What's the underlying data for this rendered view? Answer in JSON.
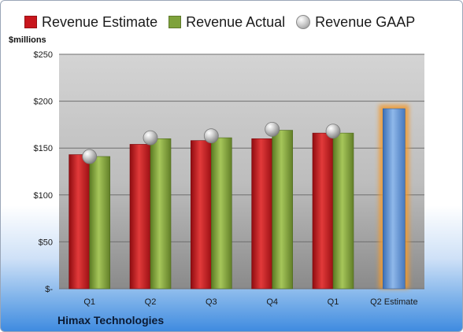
{
  "legend": {
    "estimate": "Revenue Estimate",
    "actual": "Revenue Actual",
    "gaap": "Revenue GAAP"
  },
  "unit_label": "$millions",
  "company": "Himax Technologies",
  "colors": {
    "estimate": "#c8161d",
    "actual": "#7ea23a",
    "gaap": "#bfbfbf",
    "future": "#5b93d6",
    "glow": "#f29a2e"
  },
  "chart_data": {
    "type": "bar",
    "categories": [
      "Q1",
      "Q2",
      "Q3",
      "Q4",
      "Q1",
      "Q2 Estimate"
    ],
    "ylim": [
      0,
      250
    ],
    "yticks": [
      0,
      50,
      100,
      150,
      200,
      250
    ],
    "ytick_labels": [
      "$-",
      "$50",
      "$100",
      "$150",
      "$200",
      "$250"
    ],
    "grid": true,
    "legend_position": "top",
    "series": [
      {
        "name": "Revenue Estimate",
        "values": [
          143,
          154,
          158,
          160,
          166,
          null
        ]
      },
      {
        "name": "Revenue Actual",
        "values": [
          141,
          160,
          161,
          169,
          166,
          null
        ]
      },
      {
        "name": "Revenue GAAP",
        "values": [
          141,
          161,
          163,
          170,
          168,
          null
        ]
      }
    ],
    "forecast": {
      "category_index": 5,
      "value": 192
    }
  }
}
